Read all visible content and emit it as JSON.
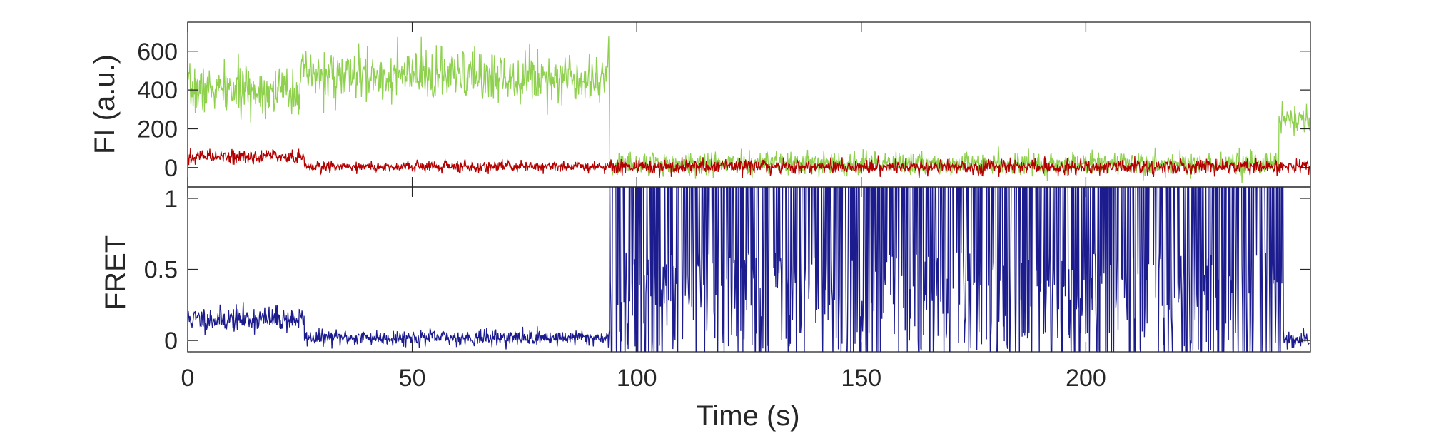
{
  "chart_data": [
    {
      "type": "line",
      "panel": "intensity",
      "ylabel": "FI (a.u.)",
      "xlim": [
        0,
        250
      ],
      "ylim": [
        -100,
        750
      ],
      "yticks": [
        0,
        200,
        400,
        600
      ],
      "ytick_labels": [
        "0",
        "200",
        "400",
        "600"
      ],
      "grid": false,
      "legend": "none",
      "series": [
        {
          "color": "#8fd14f",
          "segments": [
            {
              "t": [
                0,
                25
              ],
              "mean": 400,
              "noise": 110
            },
            {
              "t": [
                25,
                94
              ],
              "mean": 470,
              "noise": 120
            },
            {
              "t": [
                94,
                243
              ],
              "mean": 20,
              "noise": 55
            },
            {
              "t": [
                243,
                250
              ],
              "mean": 250,
              "noise": 70
            }
          ]
        },
        {
          "color": "#b30000",
          "segments": [
            {
              "t": [
                0,
                26
              ],
              "mean": 55,
              "noise": 35
            },
            {
              "t": [
                26,
                94
              ],
              "mean": 5,
              "noise": 25
            },
            {
              "t": [
                94,
                250
              ],
              "mean": 5,
              "noise": 35
            }
          ]
        }
      ]
    },
    {
      "type": "line",
      "panel": "fret",
      "ylabel": "FRET",
      "xlabel": "Time (s)",
      "xlim": [
        0,
        250
      ],
      "ylim": [
        -0.08,
        1.08
      ],
      "yticks": [
        0,
        0.5,
        1
      ],
      "ytick_labels": [
        "0",
        "0.5",
        "1"
      ],
      "xticks": [
        0,
        50,
        100,
        150,
        200
      ],
      "xtick_labels": [
        "0",
        "50",
        "100",
        "150",
        "200"
      ],
      "grid": false,
      "legend": "none",
      "series": [
        {
          "color": "#1c1c8f",
          "segments": [
            {
              "t": [
                0,
                26
              ],
              "mean": 0.15,
              "noise": 0.08
            },
            {
              "t": [
                26,
                94
              ],
              "mean": 0.02,
              "noise": 0.05
            },
            {
              "t": [
                94,
                244
              ],
              "mean": 0.5,
              "noise": 0.7
            },
            {
              "t": [
                244,
                250
              ],
              "mean": 0.0,
              "noise": 0.06
            }
          ]
        }
      ]
    }
  ]
}
